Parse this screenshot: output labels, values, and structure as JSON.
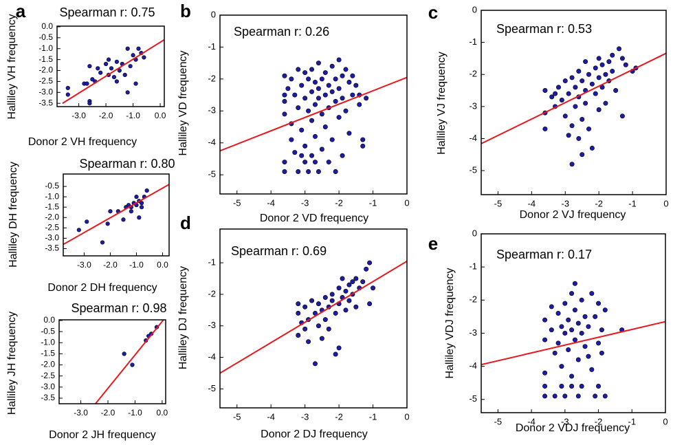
{
  "chart_data": [
    {
      "type": "scatter",
      "panel_label": "a",
      "title": "Spearman r: 0.75",
      "xlabel": "Donor 2 VH frequency",
      "ylabel": "Halliley VH frequency",
      "color": "#1c1ca8",
      "xlim": [
        -3.8,
        0.15
      ],
      "ylim": [
        -3.65,
        0.03
      ],
      "xticks": [
        {
          "value": -3,
          "label": "-3.0"
        },
        {
          "value": -2,
          "label": "-2.0"
        },
        {
          "value": -1,
          "label": "-1.0"
        },
        {
          "value": 0,
          "label": "0.0"
        }
      ],
      "yticks": [
        {
          "value": 0,
          "label": "0.0"
        },
        -0.5,
        {
          "value": -1,
          "label": "-1.0"
        },
        -1.5,
        {
          "value": -2,
          "label": "-2.0"
        },
        -2.5,
        {
          "value": -3,
          "label": "-3.0"
        },
        -3.5
      ],
      "x": [
        -3.4,
        -3.4,
        -2.8,
        -2.6,
        -2.6,
        -2.6,
        -2.5,
        -2.4,
        -2.3,
        -2.2,
        -2.0,
        -1.9,
        -1.8,
        -1.7,
        -1.6,
        -1.5,
        -1.4,
        -1.3,
        -1.2,
        -1.2,
        -1.1,
        -1.0,
        -0.9,
        -0.9,
        -0.8,
        -0.7,
        -0.6,
        -1.6,
        -2.7,
        -1.9
      ],
      "y": [
        -2.8,
        -3.1,
        -2.6,
        -3.4,
        -3.5,
        -1.8,
        -2.4,
        -2.5,
        -1.9,
        -2.1,
        -1.7,
        -1.5,
        -1.9,
        -2.3,
        -1.6,
        -2.0,
        -1.7,
        -2.2,
        -3.0,
        -1.0,
        -1.8,
        -1.3,
        -1.5,
        -2.6,
        -1.0,
        -1.2,
        -1.4,
        -2.5,
        -2.6,
        -2.2
      ],
      "fit_line": {
        "color": "#e8191e",
        "x": [
          -3.6,
          0.15
        ],
        "y": [
          -3.5,
          -0.59
        ]
      }
    },
    {
      "type": "scatter",
      "title": "Spearman r: 0.80",
      "xlabel": "Donor 2 DH frequency",
      "ylabel": "Halliley DH frequency",
      "color": "#1c1ca8",
      "xlim": [
        -3.8,
        0.25
      ],
      "ylim": [
        -3.85,
        0.1
      ],
      "xticks": [
        {
          "value": -3,
          "label": "-3.0"
        },
        {
          "value": -2,
          "label": "-2.0"
        },
        {
          "value": -1,
          "label": "-1.0"
        },
        {
          "value": 0,
          "label": "0.0"
        }
      ],
      "yticks": [
        -0.5,
        {
          "value": -1,
          "label": "-1.0"
        },
        -1.5,
        {
          "value": -2,
          "label": "-2.0"
        },
        -2.5,
        {
          "value": -3,
          "label": "-3.0"
        },
        -3.5
      ],
      "x": [
        -3.2,
        -2.9,
        -2.3,
        -2.1,
        -2.0,
        -1.7,
        -1.5,
        -1.4,
        -1.3,
        -1.2,
        -1.1,
        -1.0,
        -0.9,
        -0.9,
        -0.8,
        -0.7,
        -0.6,
        -1.0,
        -0.8,
        -1.2
      ],
      "y": [
        -2.6,
        -2.2,
        -3.2,
        -2.3,
        -1.7,
        -1.7,
        -2.1,
        -1.5,
        -1.4,
        -1.5,
        -1.3,
        -1.4,
        -1.2,
        -2.0,
        -1.5,
        -1.0,
        -0.7,
        -1.0,
        -1.3,
        -1.7
      ],
      "fit_line": {
        "color": "#e8191e",
        "x": [
          -3.8,
          0.25
        ],
        "y": [
          -3.3,
          -0.4
        ]
      }
    },
    {
      "type": "scatter",
      "title": "Spearman r: 0.98",
      "xlabel": "Donor 2 JH frequency",
      "ylabel": "Halliley JH frequency",
      "color": "#1c1ca8",
      "xlim": [
        -3.8,
        0.13
      ],
      "ylim": [
        -3.75,
        0.03
      ],
      "xticks": [
        {
          "value": -3,
          "label": "-3.0"
        },
        {
          "value": -2,
          "label": "-2.0"
        },
        {
          "value": -1,
          "label": "-1.0"
        },
        {
          "value": 0,
          "label": "0.0"
        }
      ],
      "yticks": [
        {
          "value": 0,
          "label": "0.0"
        },
        -0.5,
        {
          "value": -1,
          "label": "-1.0"
        },
        -1.5,
        {
          "value": -2,
          "label": "-2.0"
        },
        -2.5,
        {
          "value": -3,
          "label": "-3.0"
        },
        -3.5
      ],
      "x": [
        -1.4,
        -1.1,
        -0.6,
        -0.5,
        -0.4,
        -0.2
      ],
      "y": [
        -1.5,
        -2.0,
        -0.9,
        -0.7,
        -0.6,
        -0.3
      ],
      "fit_line": {
        "color": "#e8191e",
        "x": [
          -2.46,
          0.05
        ],
        "y": [
          -3.75,
          0.03
        ]
      }
    },
    {
      "type": "scatter",
      "panel_label": "b",
      "title": "Spearman r: 0.26",
      "xlabel": "Donor 2 VD frequency",
      "ylabel": "Halliley VD frequency",
      "color": "#1c1ca8",
      "xlim": [
        -5.5,
        0
      ],
      "ylim": [
        -5.6,
        0
      ],
      "xticks": [
        -5,
        -4,
        -3,
        -2,
        -1,
        0
      ],
      "yticks": [
        0,
        -1,
        -2,
        -3,
        -4,
        -5
      ],
      "x": [
        -3.6,
        -3.6,
        -3.6,
        -3.6,
        -3.6,
        -3.6,
        -3.5,
        -3.4,
        -3.4,
        -3.3,
        -3.3,
        -3.2,
        -3.2,
        -3.2,
        -3.1,
        -3.1,
        -3.0,
        -3.0,
        -3.0,
        -3.0,
        -2.9,
        -2.9,
        -2.9,
        -2.8,
        -2.8,
        -2.8,
        -2.7,
        -2.7,
        -2.7,
        -2.7,
        -2.6,
        -2.6,
        -2.6,
        -2.6,
        -2.5,
        -2.5,
        -2.5,
        -2.4,
        -2.4,
        -2.4,
        -2.3,
        -2.3,
        -2.3,
        -2.2,
        -2.2,
        -2.2,
        -2.1,
        -2.1,
        -2.1,
        -2.0,
        -2.0,
        -2.0,
        -1.9,
        -1.9,
        -1.9,
        -1.8,
        -1.8,
        -1.7,
        -1.7,
        -1.6,
        -1.6,
        -1.5,
        -1.4,
        -1.3,
        -1.3,
        -1.2,
        -1.4,
        -2.8,
        -3.4,
        -3.1
      ],
      "y": [
        -1.9,
        -2.5,
        -2.7,
        -3.1,
        -4.6,
        -4.9,
        -2.3,
        -2.0,
        -3.4,
        -2.5,
        -4.3,
        -1.7,
        -2.9,
        -4.9,
        -2.2,
        -3.6,
        -1.8,
        -2.6,
        -4.1,
        -4.6,
        -2.0,
        -3.0,
        -4.9,
        -1.7,
        -2.4,
        -3.3,
        -2.1,
        -2.8,
        -3.8,
        -4.6,
        -1.5,
        -2.3,
        -2.6,
        -4.9,
        -2.0,
        -3.1,
        -4.2,
        -1.8,
        -2.5,
        -3.5,
        -2.2,
        -2.9,
        -4.6,
        -1.6,
        -2.4,
        -3.9,
        -2.0,
        -2.7,
        -4.9,
        -1.4,
        -2.3,
        -3.2,
        -1.9,
        -2.6,
        -4.4,
        -1.7,
        -3.0,
        -2.1,
        -3.7,
        -1.9,
        -2.5,
        -2.2,
        -2.8,
        -4.1,
        -3.9,
        -2.6,
        -2.5,
        -4.4,
        -3.9,
        -4.4
      ],
      "fit_line": {
        "color": "#e8191e",
        "x": [
          -5.5,
          0
        ],
        "y": [
          -4.25,
          -1.95
        ]
      }
    },
    {
      "type": "scatter",
      "panel_label": "c",
      "title": "Spearman r: 0.53",
      "xlabel": "Donor 2 VJ frequency",
      "ylabel": "Halliley VJ frequency",
      "color": "#1c1ca8",
      "xlim": [
        -5.5,
        0
      ],
      "ylim": [
        -5.75,
        0
      ],
      "xticks": [
        -5,
        -4,
        -3,
        -2,
        -1,
        0
      ],
      "yticks": [
        0,
        -1,
        -2,
        -3,
        -4,
        -5
      ],
      "x": [
        -3.6,
        -3.6,
        -3.6,
        -3.4,
        -3.3,
        -3.2,
        -3.1,
        -3.0,
        -3.0,
        -2.9,
        -2.8,
        -2.8,
        -2.8,
        -2.7,
        -2.7,
        -2.6,
        -2.6,
        -2.6,
        -2.5,
        -2.5,
        -2.5,
        -2.4,
        -2.4,
        -2.4,
        -2.3,
        -2.3,
        -2.2,
        -2.2,
        -2.1,
        -2.1,
        -2.0,
        -2.0,
        -2.0,
        -1.9,
        -1.9,
        -1.8,
        -1.8,
        -1.7,
        -1.7,
        -1.6,
        -1.6,
        -1.5,
        -1.4,
        -1.3,
        -1.3,
        -1.2,
        -1.0,
        -0.9,
        -2.9,
        -3.3
      ],
      "y": [
        -2.5,
        -3.2,
        -3.7,
        -2.7,
        -3.0,
        -2.4,
        -2.8,
        -3.3,
        -2.2,
        -2.6,
        -2.1,
        -3.6,
        -4.8,
        -2.4,
        -3.0,
        -1.9,
        -2.7,
        -4.0,
        -2.2,
        -3.4,
        -4.5,
        -1.6,
        -2.5,
        -2.9,
        -2.0,
        -3.7,
        -2.3,
        -4.3,
        -1.8,
        -2.6,
        -1.5,
        -2.1,
        -3.1,
        -1.7,
        -2.4,
        -2.0,
        -2.9,
        -1.6,
        -2.2,
        -1.4,
        -1.9,
        -2.5,
        -1.2,
        -1.5,
        -3.3,
        -1.7,
        -1.9,
        -1.8,
        -3.9,
        -2.6
      ],
      "fit_line": {
        "color": "#e8191e",
        "x": [
          -5.5,
          0
        ],
        "y": [
          -4.16,
          -1.34
        ]
      }
    },
    {
      "type": "scatter",
      "panel_label": "d",
      "title": "Spearman r: 0.69",
      "xlabel": "Donor 2 DJ frequency",
      "ylabel": "Halliley DJ frequency",
      "color": "#1c1ca8",
      "xlim": [
        -5.5,
        0
      ],
      "ylim": [
        -5.6,
        0.07
      ],
      "xticks": [
        -5,
        -4,
        -3,
        -2,
        -1,
        0
      ],
      "yticks": [
        -1,
        -2,
        -3,
        -4,
        -5
      ],
      "x": [
        -3.2,
        -3.2,
        -3.2,
        -3.1,
        -3.0,
        -3.0,
        -2.9,
        -2.9,
        -2.8,
        -2.7,
        -2.7,
        -2.6,
        -2.6,
        -2.5,
        -2.5,
        -2.4,
        -2.4,
        -2.3,
        -2.3,
        -2.2,
        -2.2,
        -2.1,
        -2.1,
        -2.0,
        -2.0,
        -2.0,
        -1.9,
        -1.9,
        -1.8,
        -1.8,
        -1.7,
        -1.7,
        -1.6,
        -1.6,
        -1.5,
        -1.5,
        -1.4,
        -1.3,
        -1.2,
        -1.1,
        -1.1,
        -1.0
      ],
      "y": [
        -2.3,
        -2.6,
        -3.3,
        -2.9,
        -2.4,
        -3.1,
        -2.8,
        -3.5,
        -2.2,
        -2.6,
        -4.2,
        -2.3,
        -3.0,
        -2.5,
        -3.4,
        -2.1,
        -2.8,
        -2.4,
        -3.1,
        -2.2,
        -2.0,
        -2.6,
        -3.9,
        -1.8,
        -2.3,
        -3.7,
        -1.5,
        -2.1,
        -1.9,
        -2.5,
        -1.7,
        -2.2,
        -1.6,
        -2.0,
        -1.5,
        -2.4,
        -1.8,
        -1.6,
        -1.2,
        -1.0,
        -2.3,
        -1.8
      ],
      "fit_line": {
        "color": "#e8191e",
        "x": [
          -5.5,
          0
        ],
        "y": [
          -4.5,
          -0.95
        ]
      }
    },
    {
      "type": "scatter",
      "panel_label": "e",
      "title": "Spearman r: 0.17",
      "xlabel": "Donor 2 VDJ frequency",
      "ylabel": "Halliley VDJ frequency",
      "color": "#1c1ca8",
      "xlim": [
        -5.5,
        0
      ],
      "ylim": [
        -5.4,
        0
      ],
      "xticks": [
        -5,
        -4,
        -3,
        -2,
        -1,
        0
      ],
      "yticks": [
        0,
        -1,
        -2,
        -3,
        -4,
        -5
      ],
      "x": [
        -3.6,
        -3.6,
        -3.6,
        -3.6,
        -3.6,
        -3.4,
        -3.3,
        -3.3,
        -3.2,
        -3.2,
        -3.1,
        -3.1,
        -3.1,
        -3.0,
        -3.0,
        -3.0,
        -2.9,
        -2.9,
        -2.8,
        -2.8,
        -2.8,
        -2.8,
        -2.7,
        -2.7,
        -2.7,
        -2.6,
        -2.6,
        -2.6,
        -2.5,
        -2.5,
        -2.5,
        -2.4,
        -2.4,
        -2.3,
        -2.2,
        -2.2,
        -2.1,
        -2.1,
        -2.0,
        -2.0,
        -2.0,
        -1.9,
        -1.9,
        -1.8,
        -1.8,
        -1.3,
        -3.4,
        -2.3
      ],
      "y": [
        -2.6,
        -3.2,
        -4.2,
        -4.6,
        -4.9,
        -2.9,
        -3.6,
        -4.9,
        -2.4,
        -3.3,
        -2.8,
        -4.0,
        -4.6,
        -2.1,
        -3.0,
        -4.9,
        -2.6,
        -3.5,
        -1.8,
        -2.9,
        -4.3,
        -4.6,
        -1.5,
        -2.3,
        -3.2,
        -2.7,
        -3.8,
        -4.9,
        -2.0,
        -3.0,
        -4.6,
        -2.5,
        -3.4,
        -2.8,
        -1.8,
        -4.1,
        -2.5,
        -4.9,
        -2.1,
        -3.3,
        -4.6,
        -2.9,
        -3.6,
        -2.3,
        -4.9,
        -2.9,
        -2.2,
        -3.7
      ],
      "fit_line": {
        "color": "#e8191e",
        "x": [
          -5.5,
          0
        ],
        "y": [
          -3.95,
          -2.65
        ]
      }
    }
  ]
}
